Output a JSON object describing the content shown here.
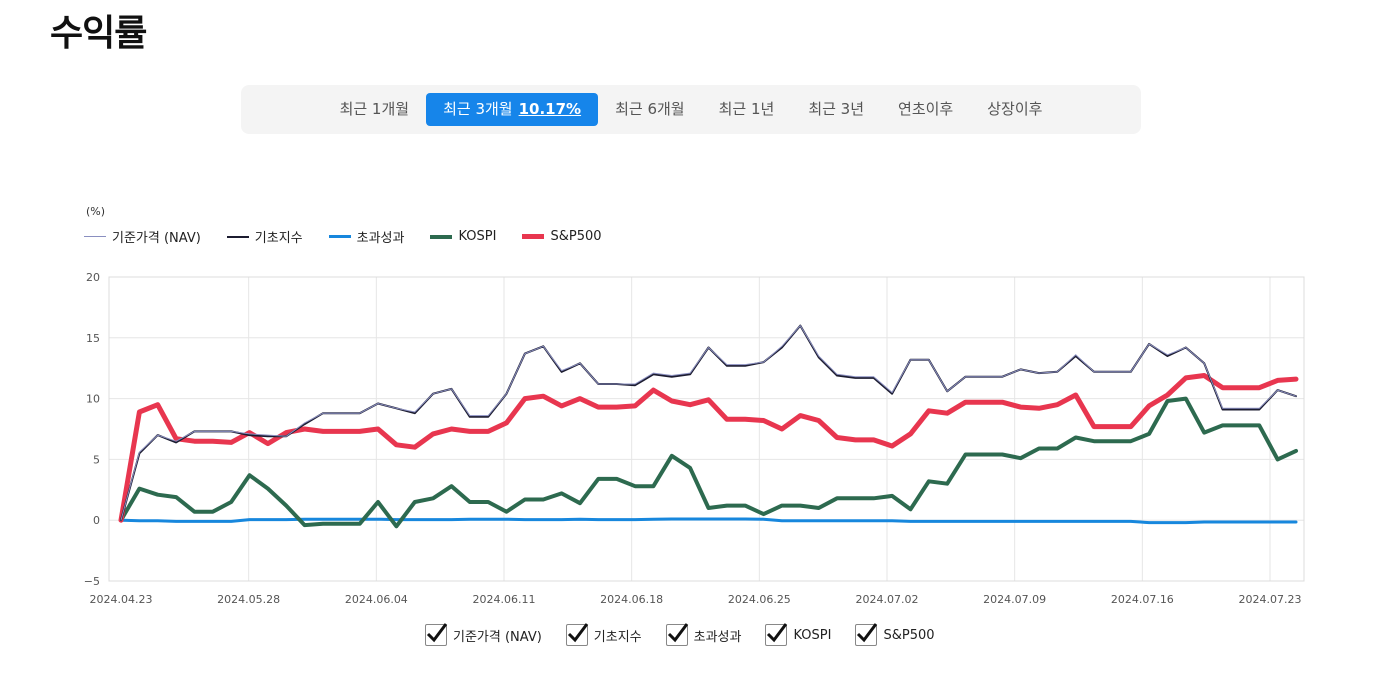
{
  "header": {
    "title": "수익률"
  },
  "tabs": [
    {
      "label": "최근 1개월",
      "active": false
    },
    {
      "label": "최근 3개월",
      "active": true,
      "value": "10.17%"
    },
    {
      "label": "최근 6개월",
      "active": false
    },
    {
      "label": "최근 1년",
      "active": false
    },
    {
      "label": "최근 3년",
      "active": false
    },
    {
      "label": "연초이후",
      "active": false
    },
    {
      "label": "상장이후",
      "active": false
    }
  ],
  "chart_data": {
    "type": "line",
    "unit_label": "(%)",
    "ylim": [
      -5,
      20
    ],
    "yticks": [
      "20",
      "15",
      "10",
      "5",
      "0",
      "−5"
    ],
    "xticks": [
      "2024.04.23",
      "2024.05.28",
      "2024.06.04",
      "2024.06.11",
      "2024.06.18",
      "2024.06.25",
      "2024.07.02",
      "2024.07.09",
      "2024.07.16",
      "2024.07.23"
    ],
    "grid": true,
    "legend_position": "top-left",
    "series": [
      {
        "name": "기준가격 (NAV)",
        "color": "#8a8fc0",
        "values": [
          0,
          5.6,
          7.0,
          6.5,
          7.3,
          7.3,
          7.3,
          7.1,
          7.0,
          6.9,
          8.0,
          8.8,
          8.8,
          8.8,
          9.6,
          9.2,
          8.9,
          10.4,
          10.8,
          8.6,
          8.6,
          10.4,
          13.7,
          14.3,
          12.3,
          12.9,
          11.2,
          11.2,
          11.2,
          12.1,
          11.9,
          12.1,
          14.2,
          12.8,
          12.8,
          13.0,
          14.3,
          16.0,
          13.5,
          12.0,
          11.8,
          11.8,
          10.5,
          13.2,
          13.2,
          10.6,
          11.8,
          11.8,
          11.8,
          12.4,
          12.1,
          12.2,
          13.6,
          12.2,
          12.2,
          12.2,
          14.5,
          13.6,
          14.2,
          12.9,
          9.2,
          9.2,
          9.2,
          10.7,
          10.2
        ]
      },
      {
        "name": "기초지수",
        "color": "#1c1c30",
        "values": [
          0,
          5.5,
          7.0,
          6.4,
          7.3,
          7.3,
          7.3,
          7.0,
          6.9,
          6.9,
          7.9,
          8.8,
          8.8,
          8.8,
          9.6,
          9.2,
          8.8,
          10.4,
          10.8,
          8.5,
          8.5,
          10.4,
          13.7,
          14.3,
          12.2,
          12.9,
          11.2,
          11.2,
          11.1,
          12.0,
          11.8,
          12.0,
          14.2,
          12.7,
          12.7,
          13.0,
          14.2,
          16.0,
          13.4,
          11.9,
          11.7,
          11.7,
          10.4,
          13.2,
          13.2,
          10.6,
          11.8,
          11.8,
          11.8,
          12.4,
          12.1,
          12.2,
          13.5,
          12.2,
          12.2,
          12.2,
          14.5,
          13.5,
          14.2,
          12.9,
          9.1,
          9.1,
          9.1,
          10.7,
          10.2
        ]
      },
      {
        "name": "초과성과",
        "color": "#1787dd",
        "values": [
          0,
          -0.05,
          -0.05,
          -0.1,
          -0.1,
          -0.1,
          -0.1,
          0.05,
          0.05,
          0.05,
          0.08,
          0.08,
          0.08,
          0.08,
          0.08,
          0.05,
          0.05,
          0.05,
          0.05,
          0.08,
          0.08,
          0.08,
          0.05,
          0.05,
          0.05,
          0.08,
          0.05,
          0.05,
          0.05,
          0.08,
          0.1,
          0.1,
          0.1,
          0.1,
          0.1,
          0.08,
          -0.05,
          -0.05,
          -0.05,
          -0.05,
          -0.05,
          -0.05,
          -0.05,
          -0.1,
          -0.1,
          -0.1,
          -0.1,
          -0.1,
          -0.1,
          -0.1,
          -0.1,
          -0.1,
          -0.1,
          -0.1,
          -0.1,
          -0.1,
          -0.2,
          -0.2,
          -0.2,
          -0.15,
          -0.15,
          -0.15,
          -0.15,
          -0.15,
          -0.15
        ]
      },
      {
        "name": "KOSPI",
        "color": "#2d6a4f",
        "values": [
          0,
          2.6,
          2.1,
          1.9,
          0.7,
          0.7,
          1.5,
          3.7,
          2.6,
          1.2,
          -0.4,
          -0.3,
          -0.3,
          -0.3,
          1.5,
          -0.5,
          1.5,
          1.8,
          2.8,
          1.5,
          1.5,
          0.7,
          1.7,
          1.7,
          2.2,
          1.4,
          3.4,
          3.4,
          2.8,
          2.8,
          5.3,
          4.3,
          1.0,
          1.2,
          1.2,
          0.5,
          1.2,
          1.2,
          1.0,
          1.8,
          1.8,
          1.8,
          2.0,
          0.9,
          3.2,
          3.0,
          5.4,
          5.4,
          5.4,
          5.1,
          5.9,
          5.9,
          6.8,
          6.5,
          6.5,
          6.5,
          7.1,
          9.8,
          10.0,
          7.2,
          7.8,
          7.8,
          7.8,
          5.0,
          5.7
        ]
      },
      {
        "name": "S&P500",
        "color": "#e8364f",
        "values": [
          0,
          8.9,
          9.5,
          6.7,
          6.5,
          6.5,
          6.4,
          7.2,
          6.3,
          7.2,
          7.5,
          7.3,
          7.3,
          7.3,
          7.5,
          6.2,
          6.0,
          7.1,
          7.5,
          7.3,
          7.3,
          8.0,
          10.0,
          10.2,
          9.4,
          10.0,
          9.3,
          9.3,
          9.4,
          10.7,
          9.8,
          9.5,
          9.9,
          8.3,
          8.3,
          8.2,
          7.5,
          8.6,
          8.2,
          6.8,
          6.6,
          6.6,
          6.1,
          7.1,
          9.0,
          8.8,
          9.7,
          9.7,
          9.7,
          9.3,
          9.2,
          9.5,
          10.3,
          7.7,
          7.7,
          7.7,
          9.4,
          10.3,
          11.7,
          11.9,
          10.9,
          10.9,
          10.9,
          11.5,
          11.6
        ]
      }
    ]
  },
  "checkboxes": [
    {
      "label": "기준가격 (NAV)",
      "checked": true
    },
    {
      "label": "기초지수",
      "checked": true
    },
    {
      "label": "초과성과",
      "checked": true
    },
    {
      "label": "KOSPI",
      "checked": true
    },
    {
      "label": "S&P500",
      "checked": true
    }
  ]
}
